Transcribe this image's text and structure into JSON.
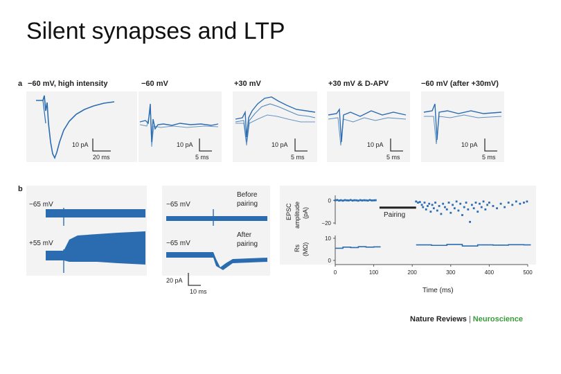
{
  "slide": {
    "title": "Silent synapses and LTP"
  },
  "panel_a": {
    "label": "a",
    "subpanels": [
      {
        "title": "−60 mV, high intensity",
        "scale_y": "10 pA",
        "scale_x": "20 ms"
      },
      {
        "title": "−60 mV",
        "scale_y": "10 pA",
        "scale_x": "5 ms"
      },
      {
        "title": "+30 mV",
        "scale_y": "10 pA",
        "scale_x": "5 ms"
      },
      {
        "title": "+30 mV & D-APV",
        "scale_y": "10 pA",
        "scale_x": "5 ms"
      },
      {
        "title": "−60 mV (after +30mV)",
        "scale_y": "10 pA",
        "scale_x": "5 ms"
      }
    ]
  },
  "panel_b": {
    "label": "b",
    "left": {
      "v1": "−65 mV",
      "v2": "+55 mV"
    },
    "middle": {
      "v1": "−65 mV",
      "note1_line1": "Before",
      "note1_line2": "pairing",
      "v2": "−65 mV",
      "note2_line1": "After",
      "note2_line2": "pairing",
      "scale_y": "20 pA",
      "scale_x": "10 ms"
    }
  },
  "chart_data": {
    "type": "scatter",
    "xlabel": "Time (ms)",
    "x_ticks": [
      "0",
      "100",
      "200",
      "300",
      "400",
      "500"
    ],
    "xlim": [
      0,
      500
    ],
    "annotation": "Pairing",
    "pairing_window": [
      115,
      210
    ],
    "top": {
      "ylabel_line1": "EPSC",
      "ylabel_line2": "amplitude",
      "ylabel_line3": "(pA)",
      "ylim": [
        -20,
        2
      ],
      "y_ticks": [
        "0",
        "−20"
      ],
      "series": [
        {
          "name": "before pairing",
          "x": [
            0,
            5,
            10,
            15,
            20,
            25,
            30,
            35,
            40,
            45,
            50,
            55,
            60,
            65,
            70,
            75,
            80,
            85,
            90,
            95,
            100,
            105
          ],
          "y": [
            0,
            0.3,
            -0.2,
            0.1,
            -0.3,
            0.2,
            0,
            -0.1,
            0.3,
            -0.2,
            0.1,
            0,
            -0.3,
            0.2,
            -0.1,
            0.1,
            0,
            -0.2,
            0.3,
            -0.1,
            0,
            0.1
          ]
        },
        {
          "name": "after pairing",
          "x": [
            210,
            215,
            220,
            225,
            228,
            232,
            236,
            240,
            244,
            248,
            252,
            256,
            260,
            265,
            270,
            275,
            280,
            285,
            290,
            295,
            300,
            305,
            310,
            315,
            320,
            325,
            330,
            335,
            340,
            345,
            350,
            355,
            360,
            365,
            370,
            375,
            380,
            385,
            390,
            395,
            400,
            410,
            420,
            430,
            440,
            450,
            460,
            470,
            480,
            490,
            498
          ],
          "y": [
            -1,
            -2,
            -1.5,
            -4,
            -6,
            -2,
            -8,
            -5,
            -3,
            -10,
            -4,
            -7,
            -2,
            -9,
            -5,
            -12,
            -3,
            -6,
            -8,
            -2,
            -11,
            -4,
            -7,
            -1,
            -9,
            -3,
            -13,
            -6,
            -2,
            -8,
            -19,
            -4,
            -7,
            -2,
            -10,
            -3,
            -6,
            -1,
            -8,
            -4,
            -2,
            -5,
            -7,
            -3,
            -6,
            -2,
            -4,
            -1,
            -3,
            -2,
            -1
          ]
        }
      ]
    },
    "bottom": {
      "ylabel_line1": "Rs",
      "ylabel_line2": "(MΩ)",
      "ylim": [
        0,
        10
      ],
      "y_ticks": [
        "10",
        "0"
      ],
      "series": [
        {
          "name": "before pairing",
          "x": [
            0,
            20,
            40,
            60,
            80,
            100
          ],
          "y": [
            5.5,
            6,
            5.8,
            6.2,
            6,
            6.1
          ]
        },
        {
          "name": "after pairing",
          "x": [
            210,
            250,
            290,
            330,
            370,
            410,
            450,
            490
          ],
          "y": [
            7,
            6.8,
            7.2,
            6.5,
            7,
            6.9,
            7.1,
            7
          ]
        }
      ]
    }
  },
  "credit": {
    "publisher": "Nature Reviews",
    "separator": "|",
    "journal": "Neuroscience"
  },
  "colors": {
    "trace": "#2b6cb0",
    "bg_panel": "#f3f3f3"
  }
}
